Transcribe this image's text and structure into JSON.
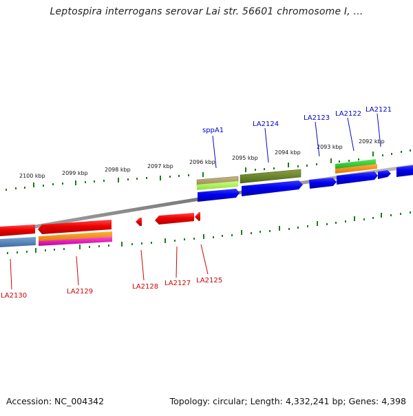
{
  "title": "Leptospira interrogans serovar Lai str. 56601 chromosome I, ...",
  "footer": {
    "accession": "Accession: NC_004342",
    "summary": "Topology: circular; Length: 4,332,241 bp; Genes: 4,398"
  },
  "scale_labels": [
    "2100 kbp",
    "2099 kbp",
    "2098 kbp",
    "2097 kbp",
    "2096 kbp",
    "2095 kbp",
    "2094 kbp",
    "2093 kbp",
    "2092 kbp"
  ],
  "genes_forward": [
    "sppA1",
    "LA2124",
    "LA2123",
    "LA2122",
    "LA2121"
  ],
  "genes_reverse": [
    "LA2130",
    "LA2129",
    "LA2128",
    "LA2127",
    "LA2125"
  ],
  "colors": {
    "label_forward": "#0000cc",
    "label_reverse": "#cc0000",
    "tick": "#1a7a1a",
    "backbone": "#8c8c8c"
  }
}
